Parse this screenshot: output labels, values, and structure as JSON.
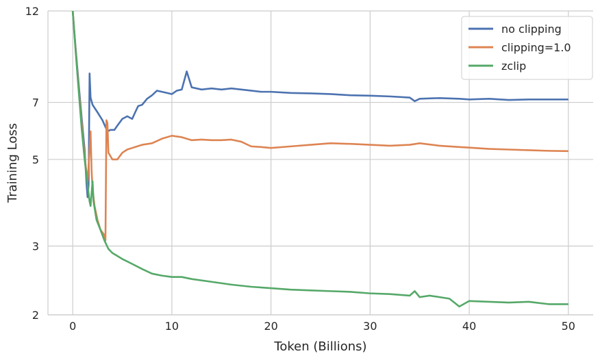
{
  "chart_data": {
    "type": "line",
    "xlabel": "Token (Billions)",
    "ylabel": "Training Loss",
    "x_ticks": [
      0,
      10,
      20,
      30,
      40,
      50
    ],
    "x_tick_labels": [
      "0",
      "10",
      "20",
      "30",
      "40",
      "50"
    ],
    "y_ticks": [
      2,
      3,
      5,
      7,
      12
    ],
    "y_tick_labels": [
      "2",
      "3",
      "5",
      "7",
      "12"
    ],
    "xlim": [
      -2.5,
      52.5
    ],
    "ylim": [
      2,
      12
    ],
    "y_scale": "log",
    "grid": true,
    "legend_position": "top-right",
    "series": [
      {
        "name": "no clipping",
        "color": "#4c72b0",
        "points": [
          [
            0,
            12
          ],
          [
            0.3,
            9.6
          ],
          [
            0.6,
            7.8
          ],
          [
            0.9,
            6.4
          ],
          [
            1.2,
            5.3
          ],
          [
            1.4,
            4.3
          ],
          [
            1.5,
            4.0
          ],
          [
            1.6,
            4.3
          ],
          [
            1.7,
            8.3
          ],
          [
            1.8,
            7.2
          ],
          [
            2.0,
            6.9
          ],
          [
            2.5,
            6.6
          ],
          [
            3.0,
            6.3
          ],
          [
            3.5,
            5.9
          ],
          [
            3.8,
            5.95
          ],
          [
            4.2,
            5.95
          ],
          [
            4.5,
            6.1
          ],
          [
            5.0,
            6.35
          ],
          [
            5.5,
            6.45
          ],
          [
            6.0,
            6.35
          ],
          [
            6.3,
            6.6
          ],
          [
            6.6,
            6.85
          ],
          [
            7.0,
            6.9
          ],
          [
            7.5,
            7.15
          ],
          [
            8.0,
            7.3
          ],
          [
            8.5,
            7.5
          ],
          [
            9.0,
            7.45
          ],
          [
            9.5,
            7.4
          ],
          [
            10.0,
            7.35
          ],
          [
            10.5,
            7.5
          ],
          [
            11.0,
            7.55
          ],
          [
            11.5,
            8.4
          ],
          [
            12,
            7.65
          ],
          [
            13,
            7.55
          ],
          [
            14,
            7.6
          ],
          [
            15,
            7.55
          ],
          [
            16,
            7.6
          ],
          [
            17,
            7.55
          ],
          [
            18,
            7.5
          ],
          [
            19,
            7.45
          ],
          [
            20,
            7.45
          ],
          [
            22,
            7.4
          ],
          [
            24,
            7.38
          ],
          [
            26,
            7.35
          ],
          [
            28,
            7.3
          ],
          [
            30,
            7.28
          ],
          [
            32,
            7.25
          ],
          [
            34,
            7.2
          ],
          [
            34.5,
            7.05
          ],
          [
            35,
            7.15
          ],
          [
            37,
            7.18
          ],
          [
            39,
            7.15
          ],
          [
            40,
            7.12
          ],
          [
            42,
            7.15
          ],
          [
            44,
            7.1
          ],
          [
            46,
            7.12
          ],
          [
            48,
            7.12
          ],
          [
            50,
            7.12
          ]
        ]
      },
      {
        "name": "clipping=1.0",
        "color": "#dd8452",
        "points": [
          [
            0,
            12
          ],
          [
            0.3,
            9.5
          ],
          [
            0.6,
            7.6
          ],
          [
            0.9,
            6.2
          ],
          [
            1.2,
            5.1
          ],
          [
            1.4,
            4.6
          ],
          [
            1.5,
            4.4
          ],
          [
            1.6,
            4.8
          ],
          [
            1.8,
            5.9
          ],
          [
            1.9,
            4.7
          ],
          [
            2.0,
            4.2
          ],
          [
            2.2,
            3.8
          ],
          [
            2.5,
            3.5
          ],
          [
            2.8,
            3.3
          ],
          [
            3.2,
            3.2
          ],
          [
            3.3,
            3.1
          ],
          [
            3.4,
            6.3
          ],
          [
            3.5,
            6.2
          ],
          [
            3.6,
            5.2
          ],
          [
            4.0,
            5.0
          ],
          [
            4.5,
            5.0
          ],
          [
            5.0,
            5.2
          ],
          [
            5.5,
            5.3
          ],
          [
            6.0,
            5.35
          ],
          [
            6.5,
            5.4
          ],
          [
            7.0,
            5.45
          ],
          [
            8.0,
            5.5
          ],
          [
            9.0,
            5.65
          ],
          [
            10.0,
            5.75
          ],
          [
            11.0,
            5.7
          ],
          [
            12,
            5.6
          ],
          [
            13,
            5.62
          ],
          [
            14,
            5.6
          ],
          [
            15,
            5.6
          ],
          [
            16,
            5.62
          ],
          [
            17,
            5.55
          ],
          [
            18,
            5.4
          ],
          [
            19,
            5.38
          ],
          [
            20,
            5.35
          ],
          [
            22,
            5.4
          ],
          [
            24,
            5.45
          ],
          [
            26,
            5.5
          ],
          [
            28,
            5.48
          ],
          [
            30,
            5.45
          ],
          [
            32,
            5.42
          ],
          [
            34,
            5.45
          ],
          [
            35,
            5.5
          ],
          [
            37,
            5.42
          ],
          [
            39,
            5.38
          ],
          [
            40,
            5.36
          ],
          [
            42,
            5.32
          ],
          [
            44,
            5.3
          ],
          [
            46,
            5.28
          ],
          [
            48,
            5.26
          ],
          [
            50,
            5.25
          ]
        ]
      },
      {
        "name": "zclip",
        "color": "#55a868",
        "points": [
          [
            0,
            12
          ],
          [
            0.3,
            9.4
          ],
          [
            0.6,
            7.5
          ],
          [
            0.9,
            6.0
          ],
          [
            1.2,
            5.0
          ],
          [
            1.5,
            4.3
          ],
          [
            1.7,
            3.9
          ],
          [
            1.8,
            3.8
          ],
          [
            2.0,
            4.4
          ],
          [
            2.1,
            3.9
          ],
          [
            2.4,
            3.5
          ],
          [
            2.8,
            3.3
          ],
          [
            3.2,
            3.1
          ],
          [
            3.6,
            2.95
          ],
          [
            4.0,
            2.88
          ],
          [
            5.0,
            2.78
          ],
          [
            6.0,
            2.7
          ],
          [
            7.0,
            2.62
          ],
          [
            8.0,
            2.55
          ],
          [
            9.0,
            2.52
          ],
          [
            10.0,
            2.5
          ],
          [
            11.0,
            2.5
          ],
          [
            12,
            2.47
          ],
          [
            14,
            2.43
          ],
          [
            16,
            2.39
          ],
          [
            18,
            2.36
          ],
          [
            20,
            2.34
          ],
          [
            22,
            2.32
          ],
          [
            24,
            2.31
          ],
          [
            26,
            2.3
          ],
          [
            28,
            2.29
          ],
          [
            30,
            2.27
          ],
          [
            32,
            2.26
          ],
          [
            34,
            2.24
          ],
          [
            34.5,
            2.3
          ],
          [
            35,
            2.22
          ],
          [
            36,
            2.24
          ],
          [
            38,
            2.2
          ],
          [
            39,
            2.1
          ],
          [
            40,
            2.17
          ],
          [
            42,
            2.16
          ],
          [
            44,
            2.15
          ],
          [
            46,
            2.16
          ],
          [
            48,
            2.13
          ],
          [
            50,
            2.13
          ]
        ]
      }
    ]
  }
}
